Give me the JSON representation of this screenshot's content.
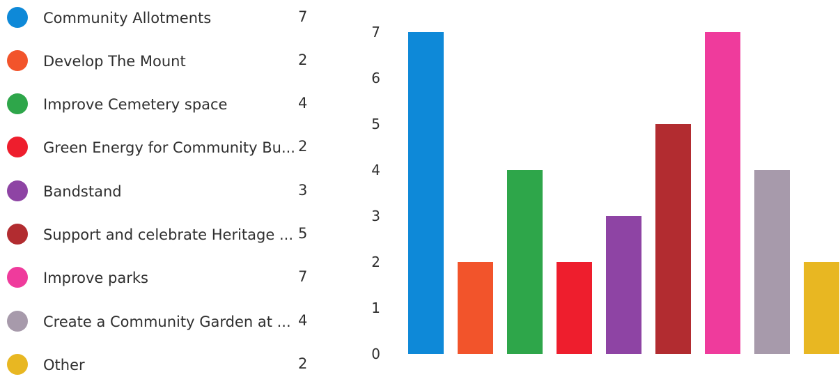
{
  "legend": {
    "items": [
      {
        "label": "Community Allotments",
        "value": "7",
        "color": "#0e89d8"
      },
      {
        "label": "Develop The Mount",
        "value": "2",
        "color": "#f2542b"
      },
      {
        "label": "Improve Cemetery space",
        "value": "4",
        "color": "#2ea64a"
      },
      {
        "label": "Green Energy for Community Bu...",
        "value": "2",
        "color": "#ee1e2d"
      },
      {
        "label": "Bandstand",
        "value": "3",
        "color": "#8e44a4"
      },
      {
        "label": "Support and celebrate Heritage ...",
        "value": "5",
        "color": "#b22c30"
      },
      {
        "label": "Improve parks",
        "value": "7",
        "color": "#ef3b9c"
      },
      {
        "label": "Create a Community Garden at ...",
        "value": "4",
        "color": "#a79aab"
      },
      {
        "label": "Other",
        "value": "2",
        "color": "#e8b722"
      }
    ]
  },
  "chart_data": {
    "type": "bar",
    "categories": [
      "Community Allotments",
      "Develop The Mount",
      "Improve Cemetery space",
      "Green Energy for Community Bu...",
      "Bandstand",
      "Support and celebrate Heritage ...",
      "Improve parks",
      "Create a Community Garden at ...",
      "Other"
    ],
    "values": [
      7,
      2,
      4,
      2,
      3,
      5,
      7,
      4,
      2
    ],
    "colors": [
      "#0e89d8",
      "#f2542b",
      "#2ea64a",
      "#ee1e2d",
      "#8e44a4",
      "#b22c30",
      "#ef3b9c",
      "#a79aab",
      "#e8b722"
    ],
    "ylim": [
      0,
      7
    ],
    "yticks": [
      "0",
      "1",
      "2",
      "3",
      "4",
      "5",
      "6",
      "7"
    ],
    "title": "",
    "xlabel": "",
    "ylabel": "",
    "grid": false,
    "legend_position": "left"
  }
}
